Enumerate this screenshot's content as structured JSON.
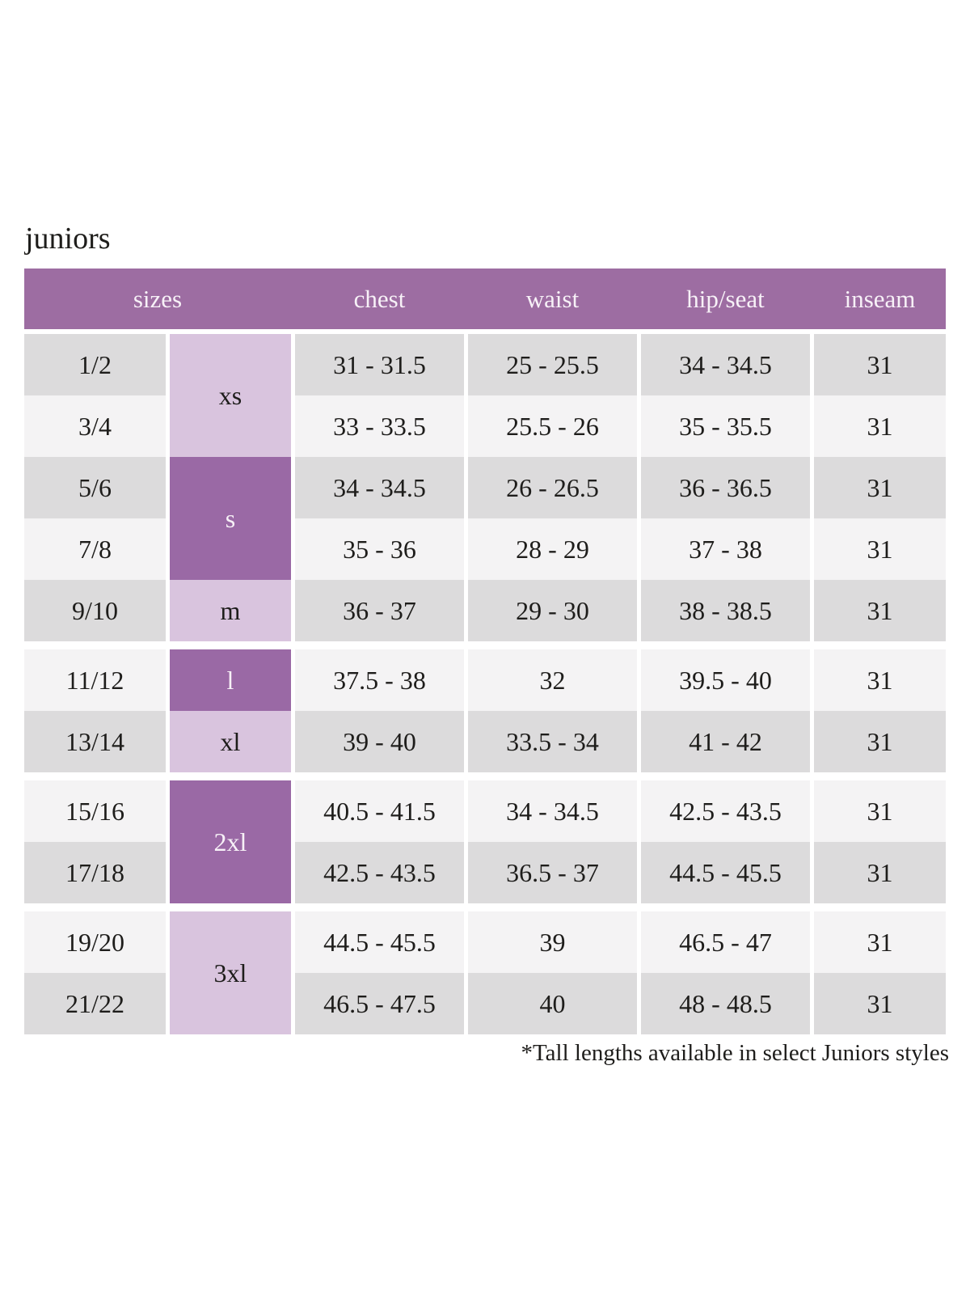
{
  "title": "juniors",
  "footnote": "*Tall lengths available in select Juniors styles",
  "colors": {
    "page_bg": "#ffffff",
    "header_bg": "#9d6da2",
    "header_text": "#f7f1f7",
    "letter_dark_bg": "#9a69a5",
    "letter_light_bg": "#d9c4de",
    "row_dark": "#dcdbdc",
    "row_light": "#f4f3f4",
    "text": "#1e1d1b"
  },
  "table": {
    "headers": [
      "sizes",
      "chest",
      "waist",
      "hip/seat",
      "inseam"
    ],
    "size_groups": [
      {
        "label": "xs",
        "rows": [
          1,
          2
        ],
        "tone": "light"
      },
      {
        "label": "s",
        "rows": [
          3,
          4
        ],
        "tone": "dark"
      },
      {
        "label": "m",
        "rows": [
          5
        ],
        "tone": "light"
      },
      {
        "label": "l",
        "rows": [
          6
        ],
        "tone": "dark"
      },
      {
        "label": "xl",
        "rows": [
          7
        ],
        "tone": "light"
      },
      {
        "label": "2xl",
        "rows": [
          8,
          9
        ],
        "tone": "dark"
      },
      {
        "label": "3xl",
        "rows": [
          10,
          11
        ],
        "tone": "light"
      }
    ],
    "rows": [
      {
        "size": "1/2",
        "chest": "31 - 31.5",
        "waist": "25 - 25.5",
        "hip_seat": "34 - 34.5",
        "inseam": "31"
      },
      {
        "size": "3/4",
        "chest": "33 - 33.5",
        "waist": "25.5 - 26",
        "hip_seat": "35 - 35.5",
        "inseam": "31"
      },
      {
        "size": "5/6",
        "chest": "34 - 34.5",
        "waist": "26 - 26.5",
        "hip_seat": "36 - 36.5",
        "inseam": "31"
      },
      {
        "size": "7/8",
        "chest": "35 - 36",
        "waist": "28 - 29",
        "hip_seat": "37 - 38",
        "inseam": "31"
      },
      {
        "size": "9/10",
        "chest": "36 - 37",
        "waist": "29 - 30",
        "hip_seat": "38 - 38.5",
        "inseam": "31"
      },
      {
        "size": "11/12",
        "chest": "37.5 - 38",
        "waist": "32",
        "hip_seat": "39.5 - 40",
        "inseam": "31"
      },
      {
        "size": "13/14",
        "chest": "39 - 40",
        "waist": "33.5 - 34",
        "hip_seat": "41 - 42",
        "inseam": "31"
      },
      {
        "size": "15/16",
        "chest": "40.5 - 41.5",
        "waist": "34 - 34.5",
        "hip_seat": "42.5 - 43.5",
        "inseam": "31"
      },
      {
        "size": "17/18",
        "chest": "42.5 - 43.5",
        "waist": "36.5 - 37",
        "hip_seat": "44.5 - 45.5",
        "inseam": "31"
      },
      {
        "size": "19/20",
        "chest": "44.5 - 45.5",
        "waist": "39",
        "hip_seat": "46.5 - 47",
        "inseam": "31"
      },
      {
        "size": "21/22",
        "chest": "46.5 - 47.5",
        "waist": "40",
        "hip_seat": "48 - 48.5",
        "inseam": "31"
      }
    ]
  }
}
